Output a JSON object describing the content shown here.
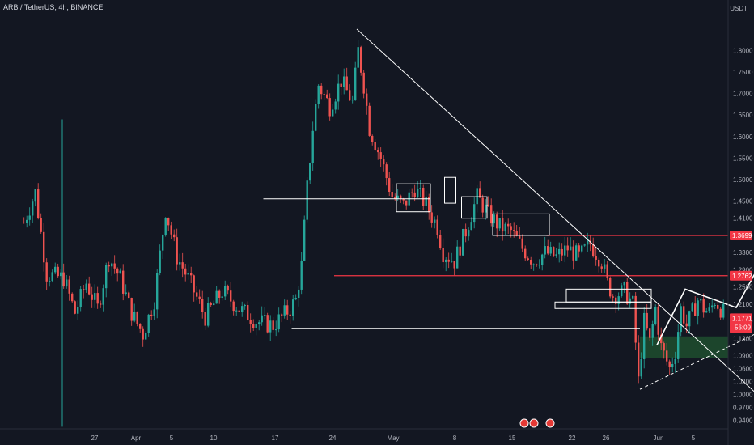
{
  "header": {
    "title": "ARB / TetherUS, 4h, BINANCE",
    "unit": "USDT"
  },
  "colors": {
    "background": "#131722",
    "up": "#26a69a",
    "down": "#ef5350",
    "level": "#f23645",
    "zone": "#1f4d2e",
    "drawing": "#ffffff",
    "axis_text": "#b2b5be"
  },
  "chart_data": {
    "type": "candlestick",
    "title": "ARB / TetherUS, 4h, BINANCE",
    "ylabel": "USDT",
    "ylim": [
      0.92,
      1.88
    ],
    "y_ticks": [
      "1.8000",
      "1.7500",
      "1.7000",
      "1.6500",
      "1.6000",
      "1.5500",
      "1.5000",
      "1.4500",
      "1.4100",
      "1.3700",
      "1.3300",
      "1.2900",
      "1.2500",
      "1.2100",
      "1.1700",
      "1.1300",
      "1.0900",
      "1.0600",
      "1.0300",
      "1.0000",
      "0.9700",
      "0.9400"
    ],
    "x_ticks": [
      "27",
      "Apr",
      "5",
      "10",
      "17",
      "24",
      "May",
      "8",
      "15",
      "22",
      "26",
      "Jun",
      "5"
    ],
    "price_labels": [
      {
        "text": "1.3699",
        "value": 1.3699
      },
      {
        "text": "1.2762",
        "value": 1.2762
      },
      {
        "text": "1.1771",
        "value": 1.1771,
        "sub": "56:09"
      }
    ],
    "horizontal_levels": [
      {
        "name": "resistance-1",
        "value": 1.3699
      },
      {
        "name": "resistance-2",
        "value": 1.2762
      }
    ],
    "demand_zone": {
      "from": 1.085,
      "to": 1.135
    },
    "waypoints": [
      [
        8,
        1.4
      ],
      [
        12,
        1.47
      ],
      [
        16,
        1.28
      ],
      [
        22,
        1.27
      ],
      [
        26,
        1.19
      ],
      [
        30,
        1.26
      ],
      [
        34,
        1.2
      ],
      [
        38,
        1.32
      ],
      [
        42,
        1.27
      ],
      [
        46,
        1.19
      ],
      [
        50,
        1.14
      ],
      [
        54,
        1.22
      ],
      [
        58,
        1.43
      ],
      [
        62,
        1.32
      ],
      [
        66,
        1.27
      ],
      [
        72,
        1.18
      ],
      [
        78,
        1.24
      ],
      [
        84,
        1.2
      ],
      [
        90,
        1.17
      ],
      [
        96,
        1.16
      ],
      [
        102,
        1.2
      ],
      [
        104,
        1.22
      ],
      [
        106,
        1.3
      ],
      [
        108,
        1.48
      ],
      [
        110,
        1.62
      ],
      [
        112,
        1.72
      ],
      [
        116,
        1.67
      ],
      [
        120,
        1.73
      ],
      [
        124,
        1.68
      ],
      [
        126,
        1.8
      ],
      [
        128,
        1.72
      ],
      [
        130,
        1.62
      ],
      [
        134,
        1.55
      ],
      [
        138,
        1.46
      ],
      [
        142,
        1.44
      ],
      [
        146,
        1.48
      ],
      [
        150,
        1.44
      ],
      [
        154,
        1.39
      ],
      [
        156,
        1.33
      ],
      [
        160,
        1.31
      ],
      [
        164,
        1.38
      ],
      [
        168,
        1.46
      ],
      [
        172,
        1.42
      ],
      [
        176,
        1.39
      ],
      [
        180,
        1.38
      ],
      [
        184,
        1.34
      ],
      [
        188,
        1.31
      ],
      [
        192,
        1.33
      ],
      [
        196,
        1.32
      ],
      [
        200,
        1.34
      ],
      [
        204,
        1.32
      ],
      [
        208,
        1.35
      ],
      [
        212,
        1.31
      ],
      [
        214,
        1.26
      ],
      [
        216,
        1.23
      ],
      [
        220,
        1.24
      ],
      [
        223,
        1.21
      ],
      [
        225,
        1.03
      ],
      [
        227,
        1.17
      ],
      [
        229,
        1.12
      ],
      [
        231,
        1.2
      ],
      [
        233,
        1.11
      ],
      [
        236,
        1.06
      ],
      [
        238,
        1.1
      ],
      [
        240,
        1.2
      ],
      [
        242,
        1.16
      ],
      [
        244,
        1.19
      ],
      [
        246,
        1.22
      ],
      [
        248,
        1.2
      ],
      [
        250,
        1.19
      ],
      [
        252,
        1.22
      ],
      [
        254,
        1.2
      ],
      [
        256,
        1.18
      ]
    ],
    "drawings": [
      {
        "name": "descending-trendline",
        "points": [
          [
            126,
            1.85
          ],
          [
            270,
            0.985
          ]
        ]
      },
      {
        "name": "support-line-1",
        "points": [
          [
            103,
            1.153
          ],
          [
            226,
            1.153
          ]
        ]
      },
      {
        "name": "support-line-2",
        "points": [
          [
            93,
            1.455
          ],
          [
            152,
            1.455
          ]
        ]
      },
      {
        "name": "rising-support-dashed",
        "points": [
          [
            226,
            1.012
          ],
          [
            276,
            1.17
          ]
        ]
      },
      {
        "name": "projection-zigzag",
        "points": [
          [
            232,
            1.115
          ],
          [
            242,
            1.245
          ],
          [
            260,
            1.202
          ],
          [
            272,
            1.346
          ],
          [
            318,
            0.978
          ]
        ]
      }
    ],
    "boxes": [
      {
        "name": "box-1",
        "x": [
          140,
          152
        ],
        "y": [
          1.425,
          1.49
        ]
      },
      {
        "name": "box-2",
        "x": [
          157,
          161
        ],
        "y": [
          1.445,
          1.505
        ]
      },
      {
        "name": "box-3",
        "x": [
          163,
          172
        ],
        "y": [
          1.41,
          1.46
        ]
      },
      {
        "name": "box-4",
        "x": [
          174,
          194
        ],
        "y": [
          1.37,
          1.42
        ]
      },
      {
        "name": "box-5",
        "x": [
          200,
          230
        ],
        "y": [
          1.215,
          1.245
        ]
      },
      {
        "name": "box-6",
        "x": [
          196,
          230
        ],
        "y": [
          1.2,
          1.215
        ]
      }
    ],
    "grid": false,
    "legend": "none"
  }
}
